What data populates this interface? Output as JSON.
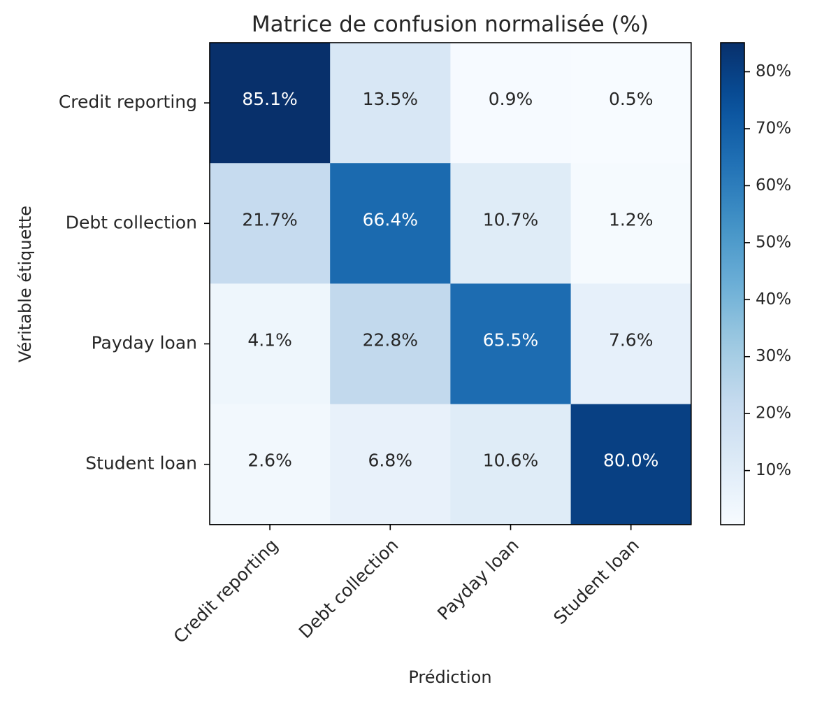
{
  "chart_data": {
    "type": "heatmap",
    "title": "Matrice de confusion normalisée (%)",
    "xlabel": "Prédiction",
    "ylabel": "Véritable étiquette",
    "row_labels": [
      "Credit reporting",
      "Debt collection",
      "Payday loan",
      "Student loan"
    ],
    "col_labels": [
      "Credit reporting",
      "Debt collection",
      "Payday loan",
      "Student loan"
    ],
    "values": [
      [
        85.1,
        13.5,
        0.9,
        0.5
      ],
      [
        21.7,
        66.4,
        10.7,
        1.2
      ],
      [
        4.1,
        22.8,
        65.5,
        7.6
      ],
      [
        2.6,
        6.8,
        10.6,
        80.0
      ]
    ],
    "value_labels": [
      [
        "85.1%",
        "13.5%",
        "0.9%",
        "0.5%"
      ],
      [
        "21.7%",
        "66.4%",
        "10.7%",
        "1.2%"
      ],
      [
        "4.1%",
        "22.8%",
        "65.5%",
        "7.6%"
      ],
      [
        "2.6%",
        "6.8%",
        "10.6%",
        "80.0%"
      ]
    ],
    "colormap": "Blues",
    "color_range": [
      0.5,
      85.1
    ],
    "colorbar": {
      "ticks": [
        10,
        20,
        30,
        40,
        50,
        60,
        70,
        80
      ],
      "tick_labels": [
        "10%",
        "20%",
        "30%",
        "40%",
        "50%",
        "60%",
        "70%",
        "80%"
      ]
    },
    "text_colors": {
      "dark": "#262626",
      "light": "#ffffff"
    },
    "grid": false
  }
}
